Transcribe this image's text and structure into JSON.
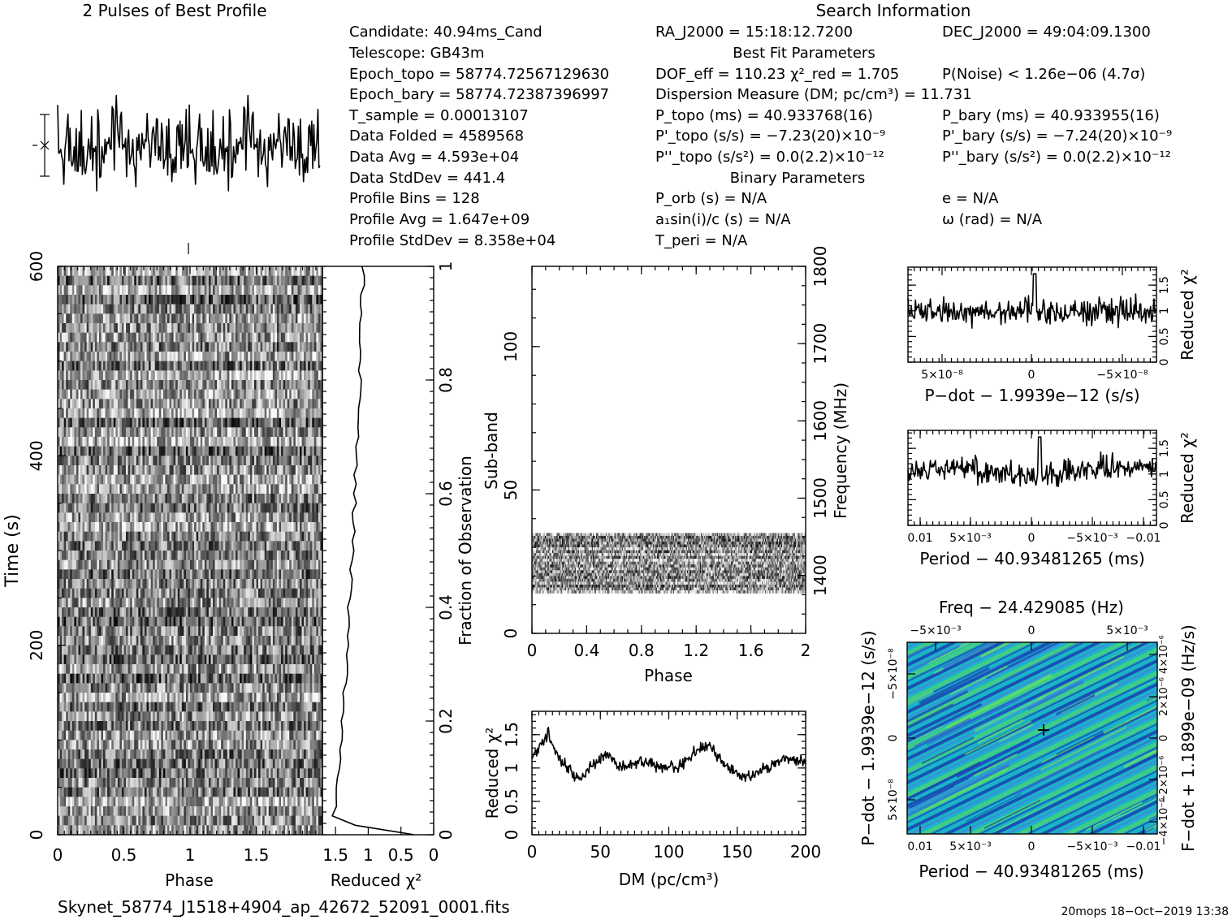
{
  "pulse_profile": {
    "title": "2 Pulses of Best Profile"
  },
  "header": {
    "search_title": "Search Information",
    "best_fit_title": "Best Fit Parameters",
    "binary_title": "Binary Parameters",
    "col1": [
      "Candidate:  40.94ms_Cand",
      "Telescope:  GB43m",
      "Epoch_topo = 58774.72567129630",
      "Epoch_bary = 58774.72387396997",
      "T_sample        =   0.00013107",
      "Data Folded     =   4589568",
      "Data Avg        =   4.593e+04",
      "Data StdDev     =   441.4",
      "Profile Bins    =   128",
      "Profile Avg     =   1.647e+09",
      "Profile StdDev  =   8.358e+04"
    ],
    "col2": [
      "RA_J2000 = 15:18:12.7200",
      "",
      "DOF_eff = 110.23   χ²_red = 1.705",
      "Dispersion Measure (DM; pc/cm³) = 11.731",
      "P_topo (ms) =  40.933768(16)",
      "P'_topo (s/s) = −7.23(20)×10⁻⁹",
      "P''_topo (s/s²) = 0.0(2.2)×10⁻¹²",
      "",
      "P_orb (s) = N/A",
      "a₁sin(i)/c (s) = N/A",
      "T_peri = N/A"
    ],
    "col3": [
      "DEC_J2000 = 49:04:09.1300",
      "",
      "P(Noise) < 1.26e−06   (4.7σ)",
      "",
      "P_bary (ms) =  40.933955(16)",
      "P'_bary (s/s) = −7.24(20)×10⁻⁹",
      "P''_bary (s/s²) = 0.0(2.2)×10⁻¹²",
      "",
      "e = N/A",
      "ω (rad) = N/A",
      ""
    ]
  },
  "footer": {
    "filename": "Skynet_58774_J1518+4904_ap_42672_52091_0001.fits",
    "stamp": "20mops 18−Oct−2019 13:38"
  },
  "colors": {
    "gray_dark": "#1a1a1a",
    "gray_light": "#ffffff",
    "ppdot_low": "#1a3fb0",
    "ppdot_mid": "#19b4c8",
    "ppdot_high": "#6be35a"
  },
  "chart_data": [
    {
      "id": "pulse-profile",
      "type": "line",
      "title": "2 Pulses of Best Profile",
      "x_range": [
        0,
        2
      ],
      "bins": 128,
      "pulses": 2,
      "errorbar_label": "",
      "grid": false
    },
    {
      "id": "time-phase",
      "type": "heatmap",
      "xlabel": "Phase",
      "ylabel": "Time (s)",
      "ylabel_right": "Fraction of Observation",
      "xlim": [
        0,
        2
      ],
      "ylim": [
        0,
        600
      ],
      "x_ticks": [
        "0",
        "0.5",
        "1",
        "1.5"
      ],
      "y_ticks": [
        "0",
        "200",
        "400",
        "600"
      ],
      "y2_ticks": [
        "0",
        "0.2",
        "0.4",
        "0.6",
        "0.8",
        "1"
      ],
      "colormap": "grayscale"
    },
    {
      "id": "time-redchi",
      "type": "line",
      "xlabel": "Reduced χ²",
      "x_ticks": [
        "1.5",
        "1",
        "0.5",
        "0"
      ],
      "xlim": [
        1.7,
        0
      ]
    },
    {
      "id": "subband-phase",
      "type": "heatmap",
      "xlabel": "Phase",
      "ylabel": "Sub-band",
      "ylabel_right": "Frequency (MHz)",
      "xlim": [
        0,
        2
      ],
      "ylim": [
        0,
        128
      ],
      "x_ticks": [
        "0",
        "0.4",
        "0.8",
        "1.2",
        "1.6",
        "2"
      ],
      "y_ticks": [
        "0",
        "50",
        "100"
      ],
      "y2_ticks": [
        "1400",
        "1500",
        "1600",
        "1700",
        "1800"
      ],
      "y2_range": [
        1325,
        1800
      ],
      "occupied_subbands": [
        14,
        35
      ],
      "colormap": "grayscale"
    },
    {
      "id": "dm-redchi",
      "type": "line",
      "xlabel": "DM (pc/cm³)",
      "ylabel": "Reduced χ²",
      "xlim": [
        0,
        200
      ],
      "ylim": [
        0,
        1.85
      ],
      "x_ticks": [
        "0",
        "50",
        "100",
        "150",
        "200"
      ],
      "y_ticks": [
        "0",
        "0.5",
        "1",
        "1.5"
      ],
      "key_points": [
        [
          0,
          1.15
        ],
        [
          5,
          1.28
        ],
        [
          12,
          1.55
        ],
        [
          15,
          1.3
        ],
        [
          25,
          1.0
        ],
        [
          35,
          0.82
        ],
        [
          45,
          1.05
        ],
        [
          55,
          1.2
        ],
        [
          65,
          1.0
        ],
        [
          80,
          1.1
        ],
        [
          95,
          1.0
        ],
        [
          110,
          1.05
        ],
        [
          120,
          1.25
        ],
        [
          130,
          1.35
        ],
        [
          140,
          1.05
        ],
        [
          155,
          0.85
        ],
        [
          170,
          1.0
        ],
        [
          185,
          1.15
        ],
        [
          200,
          1.1
        ]
      ]
    },
    {
      "id": "pdot-redchi",
      "type": "line",
      "xlabel": "P−dot − 1.9939e−12 (s/s)",
      "ylabel": "Reduced χ²",
      "ylim": [
        0,
        1.85
      ],
      "x_ticks": [
        "5×10⁻⁸",
        "0",
        "−5×10⁻⁸"
      ],
      "y_ticks": [
        "0",
        "0.5",
        "1",
        "1.5"
      ],
      "peak_label": "",
      "mean": 1.0
    },
    {
      "id": "period-redchi",
      "type": "line",
      "xlabel": "Period − 40.93481265 (ms)",
      "ylabel": "Reduced χ²",
      "ylim": [
        0,
        1.85
      ],
      "x_ticks": [
        "0.01",
        "5×10⁻³",
        "0",
        "−5×10⁻³",
        "−0.01"
      ],
      "y_ticks": [
        "0",
        "0.5",
        "1",
        "1.5"
      ],
      "mean": 1.05
    },
    {
      "id": "period-pdot",
      "type": "heatmap",
      "title": "Freq − 24.429085 (Hz)",
      "xlabel": "Period − 40.93481265 (ms)",
      "ylabel": "P−dot − 1.9939e−12 (s/s)",
      "ylabel_right": "F−dot + 1.1899e−09 (Hz/s)",
      "x_ticks": [
        "0.01",
        "5×10⁻³",
        "0",
        "−5×10⁻³",
        "−0.01"
      ],
      "x_top_ticks": [
        "−5×10⁻³",
        "0",
        "5×10⁻³"
      ],
      "y_ticks": [
        "5×10⁻⁸",
        "0",
        "−5×10⁻⁸"
      ],
      "y2_ticks": [
        "−4×10⁻⁶",
        "−2×10⁻⁶",
        "0",
        "2×10⁻⁶",
        "4×10⁻⁶"
      ],
      "best_marker": "+",
      "colormap": "blue-cyan-green"
    }
  ]
}
